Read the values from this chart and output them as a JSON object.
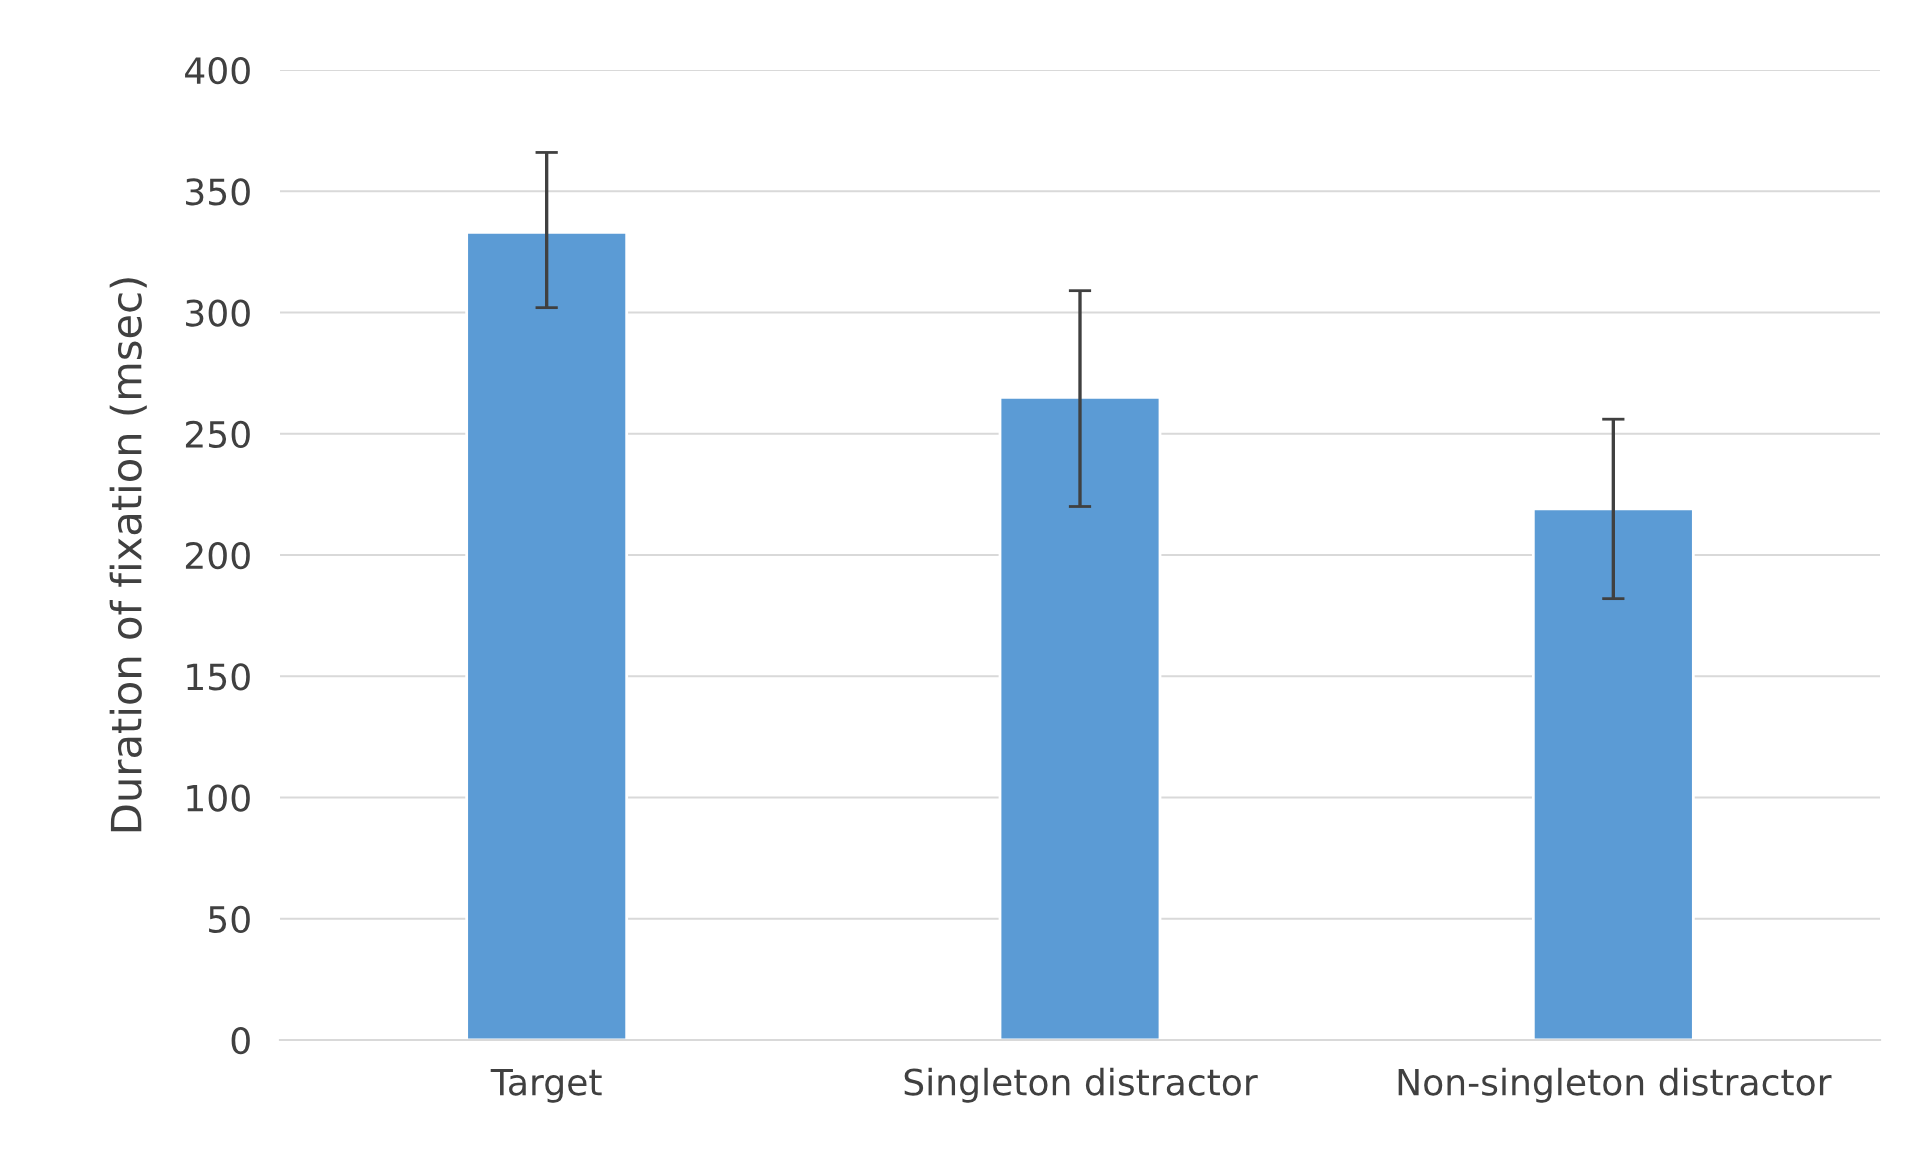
{
  "chart_data": {
    "type": "bar",
    "ylabel": "Duration of fixation (msec)",
    "categories": [
      "Target",
      "Singleton distractor",
      "Non-singleton distractor"
    ],
    "values": [
      333,
      265,
      219
    ],
    "color": "#5b9bd5",
    "errors": [
      [
        302,
        366
      ],
      [
        220,
        309
      ],
      [
        182,
        256
      ]
    ],
    "ylim": [
      0,
      400
    ],
    "yticks": [
      0,
      50,
      100,
      150,
      200,
      250,
      300,
      350,
      400
    ],
    "grid": "y"
  }
}
